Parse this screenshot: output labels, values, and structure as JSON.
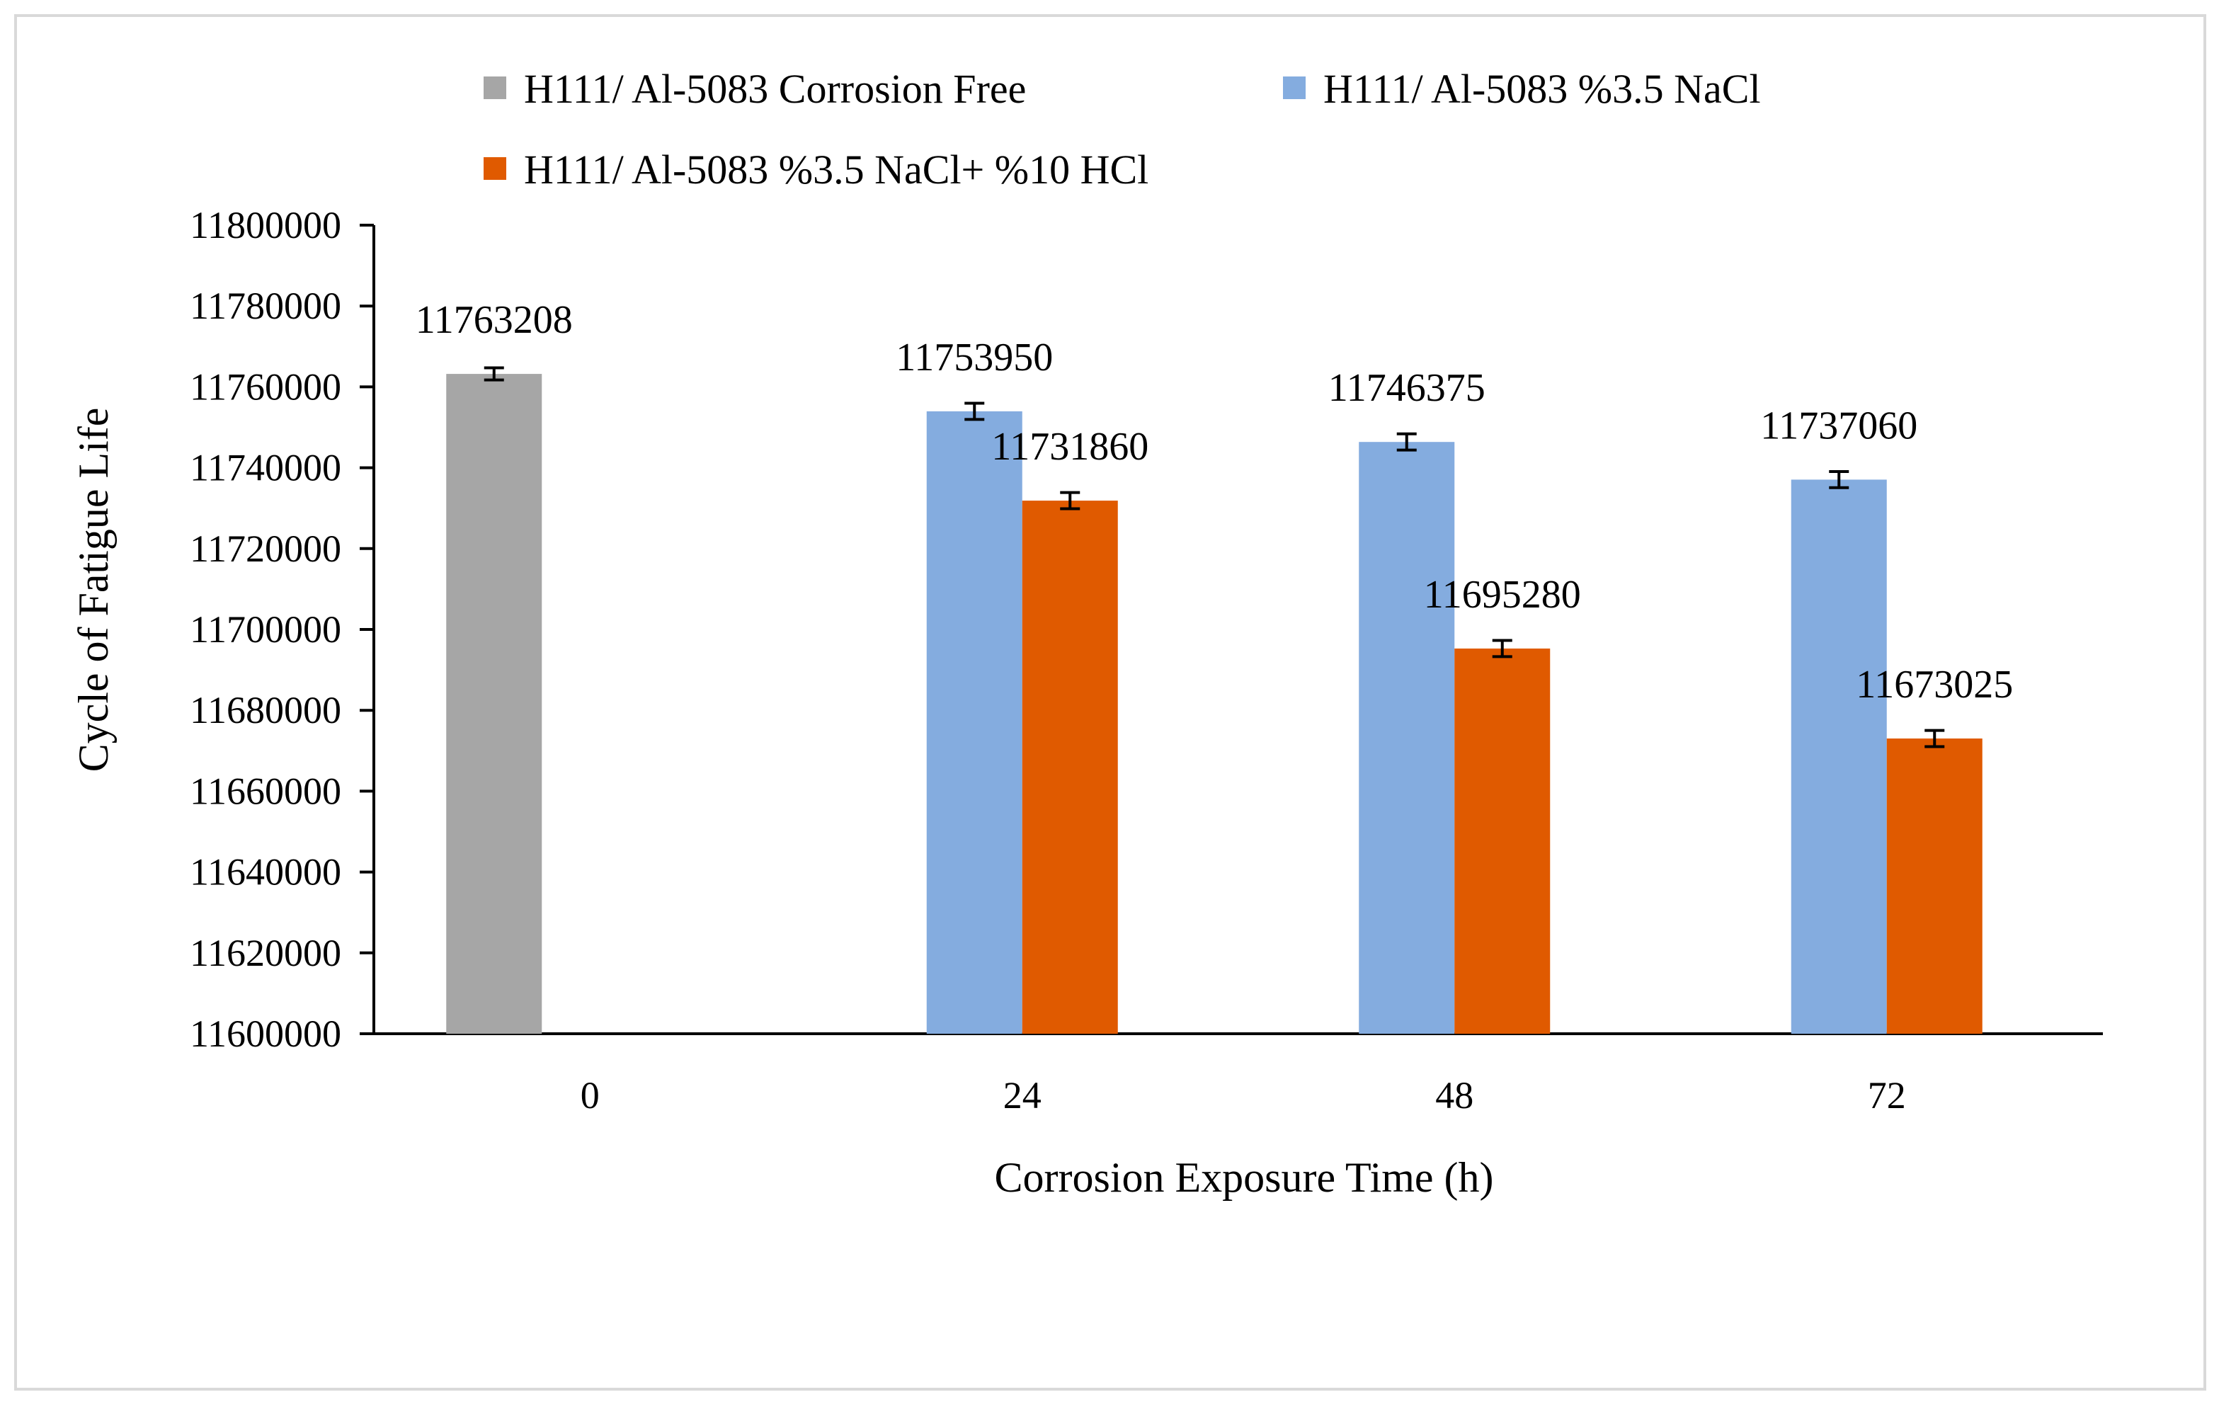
{
  "chart_data": {
    "type": "bar",
    "title": "",
    "xlabel": "Corrosion Exposure Time (h)",
    "ylabel": "Cycle of Fatigue Life",
    "categories": [
      "0",
      "24",
      "48",
      "72"
    ],
    "ylim": [
      11600000,
      11800000
    ],
    "ytick_step": 20000,
    "yticks": [
      "11600000",
      "11620000",
      "11640000",
      "11660000",
      "11680000",
      "11700000",
      "11720000",
      "11740000",
      "11760000",
      "11780000",
      "11800000"
    ],
    "series": [
      {
        "name": "H111/ Al-5083 Corrosion Free",
        "color": "#a6a6a6",
        "values": [
          11763208,
          null,
          null,
          null
        ],
        "labels": [
          "11763208",
          null,
          null,
          null
        ],
        "error": [
          1500,
          null,
          null,
          null
        ]
      },
      {
        "name": "H111/ Al-5083 %3.5 NaCl",
        "color": "#84acdf",
        "values": [
          null,
          11753950,
          11746375,
          11737060
        ],
        "labels": [
          null,
          "11753950",
          "11746375",
          "11737060"
        ],
        "error": [
          null,
          2000,
          2000,
          2000
        ]
      },
      {
        "name": "H111/ Al-5083 %3.5 NaCl+ %10 HCl",
        "color": "#e05a00",
        "values": [
          null,
          11731860,
          11695280,
          11673025
        ],
        "labels": [
          null,
          "11731860",
          "11695280",
          "11673025"
        ],
        "error": [
          null,
          2000,
          2000,
          2000
        ]
      }
    ],
    "legend_position": "top",
    "grid": false
  }
}
